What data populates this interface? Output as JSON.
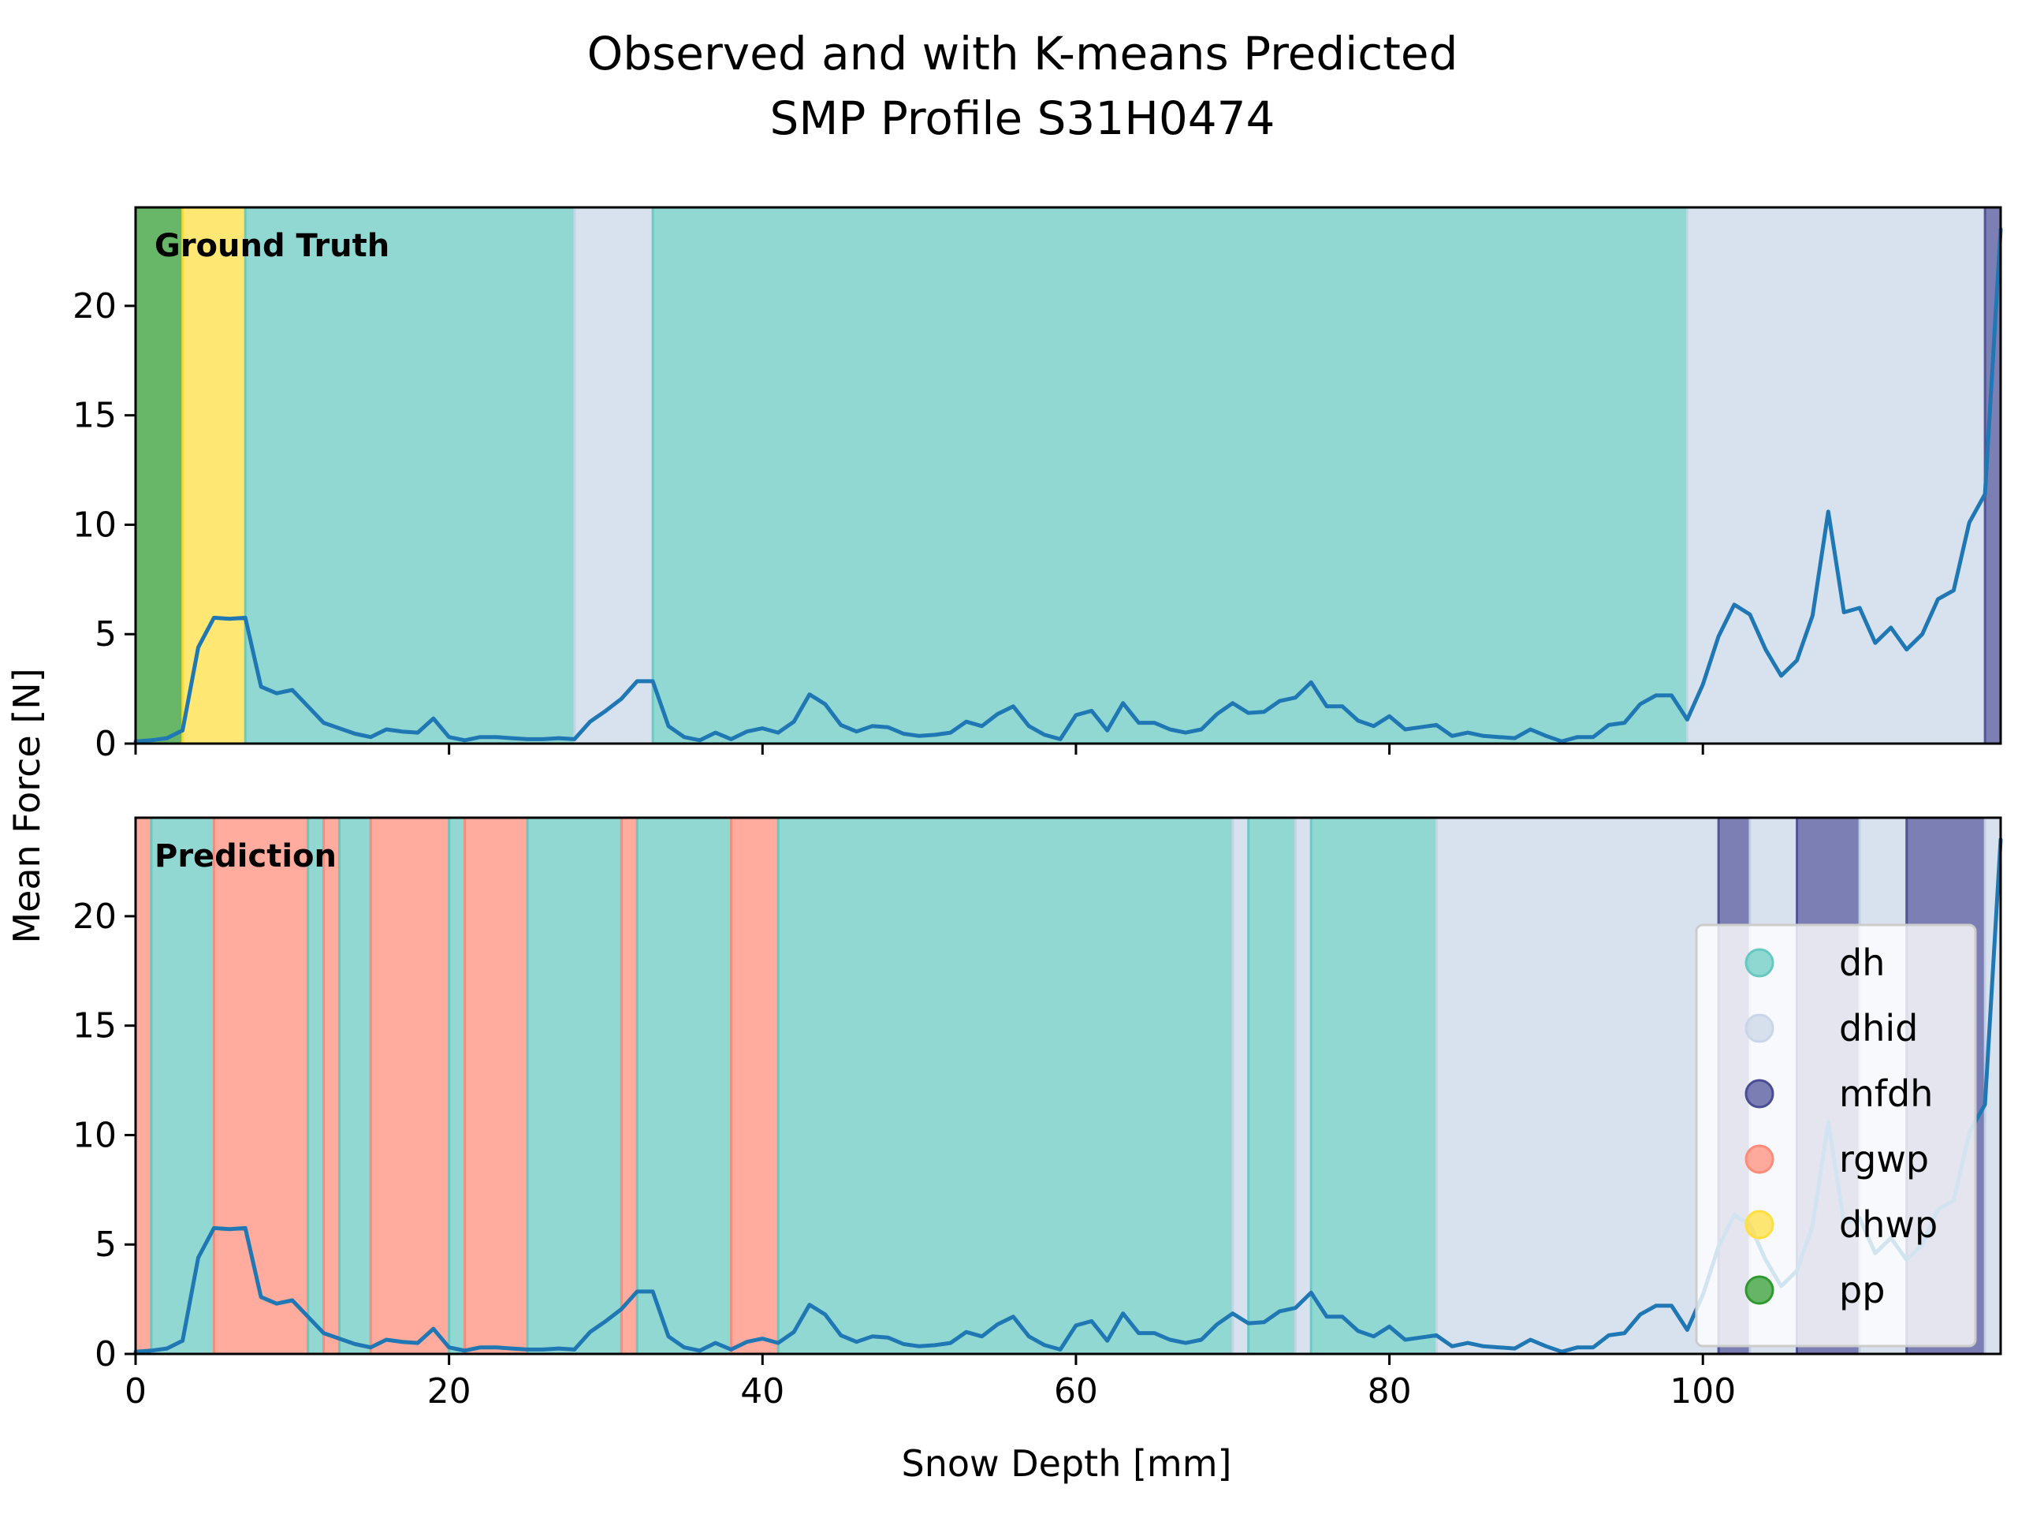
{
  "chart_data": {
    "type": "line",
    "title_line1": "Observed and with K-means Predicted",
    "title_line2": "SMP Profile S31H0474",
    "xlabel": "Snow Depth [mm]",
    "ylabel": "Mean Force [N]",
    "xlim": [
      0,
      119
    ],
    "ylim": [
      0,
      24.5
    ],
    "xticks": [
      0,
      20,
      40,
      60,
      80,
      100
    ],
    "yticks": [
      0,
      5,
      10,
      15,
      20
    ],
    "grid": false,
    "legend_position": "lower-right",
    "legend": [
      {
        "label": "dh",
        "color": "#66c9c1"
      },
      {
        "label": "dhid",
        "color": "#c9d6e8"
      },
      {
        "label": "mfdh",
        "color": "#4a4d96"
      },
      {
        "label": "rgwp",
        "color": "#ff8a78"
      },
      {
        "label": "dhwp",
        "color": "#ffde3d"
      },
      {
        "label": "pp",
        "color": "#2e9a2e"
      }
    ],
    "line_color": "#1f77b4",
    "x": [
      0,
      1,
      2,
      3,
      4,
      5,
      6,
      7,
      8,
      9,
      10,
      11,
      12,
      13,
      14,
      15,
      16,
      17,
      18,
      19,
      20,
      21,
      22,
      23,
      24,
      25,
      26,
      27,
      28,
      29,
      30,
      31,
      32,
      33,
      34,
      35,
      36,
      37,
      38,
      39,
      40,
      41,
      42,
      43,
      44,
      45,
      46,
      47,
      48,
      49,
      50,
      51,
      52,
      53,
      54,
      55,
      56,
      57,
      58,
      59,
      60,
      61,
      62,
      63,
      64,
      65,
      66,
      67,
      68,
      69,
      70,
      71,
      72,
      73,
      74,
      75,
      76,
      77,
      78,
      79,
      80,
      81,
      82,
      83,
      84,
      85,
      86,
      87,
      88,
      89,
      90,
      91,
      92,
      93,
      94,
      95,
      96,
      97,
      98,
      99,
      100,
      101,
      102,
      103,
      104,
      105,
      106,
      107,
      108,
      109,
      110,
      111,
      112,
      113,
      114,
      115,
      116,
      117,
      118,
      119
    ],
    "y": [
      0.1,
      0.15,
      0.25,
      0.6,
      4.4,
      5.75,
      5.7,
      5.75,
      2.6,
      2.3,
      2.45,
      1.7,
      0.95,
      0.7,
      0.45,
      0.3,
      0.65,
      0.55,
      0.5,
      1.15,
      0.3,
      0.15,
      0.3,
      0.3,
      0.25,
      0.2,
      0.2,
      0.25,
      0.2,
      1.0,
      1.5,
      2.05,
      2.85,
      2.85,
      0.8,
      0.3,
      0.15,
      0.5,
      0.2,
      0.55,
      0.7,
      0.5,
      1.0,
      2.25,
      1.8,
      0.85,
      0.55,
      0.8,
      0.75,
      0.45,
      0.35,
      0.4,
      0.5,
      1.0,
      0.8,
      1.35,
      1.7,
      0.8,
      0.4,
      0.2,
      1.3,
      1.5,
      0.6,
      1.85,
      0.95,
      0.95,
      0.65,
      0.5,
      0.65,
      1.35,
      1.85,
      1.4,
      1.45,
      1.95,
      2.1,
      2.8,
      1.7,
      1.7,
      1.05,
      0.8,
      1.25,
      0.65,
      0.75,
      0.85,
      0.35,
      0.5,
      0.35,
      0.3,
      0.25,
      0.65,
      0.35,
      0.1,
      0.3,
      0.3,
      0.85,
      0.95,
      1.8,
      2.2,
      2.2,
      1.1,
      2.7,
      4.9,
      6.35,
      5.9,
      4.3,
      3.1,
      3.8,
      5.85,
      10.6,
      6.0,
      6.2,
      4.6,
      5.3,
      4.3,
      5.0,
      6.6,
      7.0,
      10.1,
      11.4,
      23.5
    ],
    "panels": [
      {
        "label": "Ground Truth",
        "segments": [
          {
            "class": "pp",
            "start": 0,
            "end": 3
          },
          {
            "class": "dhwp",
            "start": 3,
            "end": 7
          },
          {
            "class": "dh",
            "start": 7,
            "end": 28
          },
          {
            "class": "dhid",
            "start": 28,
            "end": 33
          },
          {
            "class": "dh",
            "start": 33,
            "end": 99
          },
          {
            "class": "dhid",
            "start": 99,
            "end": 118
          },
          {
            "class": "mfdh",
            "start": 118,
            "end": 119
          }
        ]
      },
      {
        "label": "Prediction",
        "segments": [
          {
            "class": "rgwp",
            "start": 0,
            "end": 1
          },
          {
            "class": "dh",
            "start": 1,
            "end": 5
          },
          {
            "class": "rgwp",
            "start": 5,
            "end": 11
          },
          {
            "class": "dh",
            "start": 11,
            "end": 12
          },
          {
            "class": "rgwp",
            "start": 12,
            "end": 13
          },
          {
            "class": "dh",
            "start": 13,
            "end": 15
          },
          {
            "class": "rgwp",
            "start": 15,
            "end": 20
          },
          {
            "class": "dh",
            "start": 20,
            "end": 21
          },
          {
            "class": "rgwp",
            "start": 21,
            "end": 25
          },
          {
            "class": "dh",
            "start": 25,
            "end": 31
          },
          {
            "class": "rgwp",
            "start": 31,
            "end": 32
          },
          {
            "class": "dh",
            "start": 32,
            "end": 38
          },
          {
            "class": "rgwp",
            "start": 38,
            "end": 41
          },
          {
            "class": "dh",
            "start": 41,
            "end": 70
          },
          {
            "class": "dhid",
            "start": 70,
            "end": 71
          },
          {
            "class": "dh",
            "start": 71,
            "end": 74
          },
          {
            "class": "dhid",
            "start": 74,
            "end": 75
          },
          {
            "class": "dh",
            "start": 75,
            "end": 83
          },
          {
            "class": "dhid",
            "start": 83,
            "end": 101
          },
          {
            "class": "mfdh",
            "start": 101,
            "end": 103
          },
          {
            "class": "dhid",
            "start": 103,
            "end": 106
          },
          {
            "class": "mfdh",
            "start": 106,
            "end": 110
          },
          {
            "class": "dhid",
            "start": 110,
            "end": 113
          },
          {
            "class": "mfdh",
            "start": 113,
            "end": 118
          },
          {
            "class": "dhid",
            "start": 118,
            "end": 119
          }
        ]
      }
    ]
  }
}
